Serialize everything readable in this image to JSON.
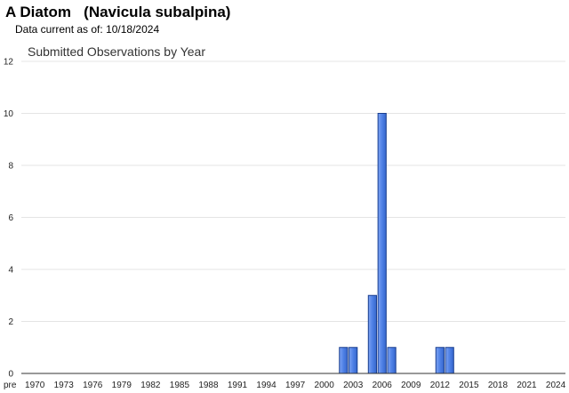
{
  "header": {
    "title": "A Diatom   (Navicula subalpina)",
    "data_current_label": "Data current as of:",
    "data_current_date": "10/18/2024"
  },
  "chart_data": {
    "type": "bar",
    "title": "Submitted Observations by Year",
    "xlabel": "",
    "ylabel": "",
    "ylim": [
      0,
      12
    ],
    "yticks": [
      0,
      2,
      4,
      6,
      8,
      10,
      12
    ],
    "grid": true,
    "categories": [
      "pre",
      "1970",
      "1971",
      "1972",
      "1973",
      "1974",
      "1975",
      "1976",
      "1977",
      "1978",
      "1979",
      "1980",
      "1981",
      "1982",
      "1983",
      "1984",
      "1985",
      "1986",
      "1987",
      "1988",
      "1989",
      "1990",
      "1991",
      "1992",
      "1993",
      "1994",
      "1995",
      "1996",
      "1997",
      "1998",
      "1999",
      "2000",
      "2001",
      "2002",
      "2003",
      "2004",
      "2005",
      "2006",
      "2007",
      "2008",
      "2009",
      "2010",
      "2011",
      "2012",
      "2013",
      "2014",
      "2015",
      "2016",
      "2017",
      "2018",
      "2019",
      "2020",
      "2021",
      "2022",
      "2023",
      "2024"
    ],
    "values": [
      0,
      0,
      0,
      0,
      0,
      0,
      0,
      0,
      0,
      0,
      0,
      0,
      0,
      0,
      0,
      0,
      0,
      0,
      0,
      0,
      0,
      0,
      0,
      0,
      0,
      0,
      0,
      0,
      0,
      0,
      0,
      0,
      0,
      1,
      1,
      0,
      3,
      10,
      1,
      0,
      0,
      0,
      0,
      1,
      1,
      0,
      0,
      0,
      0,
      0,
      0,
      0,
      0,
      0,
      0,
      0
    ],
    "xtick_labels": [
      "pre",
      "1970",
      "1973",
      "1976",
      "1979",
      "1982",
      "1985",
      "1988",
      "1991",
      "1994",
      "1997",
      "2000",
      "2003",
      "2006",
      "2009",
      "2012",
      "2015",
      "2018",
      "2021",
      "2024"
    ],
    "bar_color": "#4f81e6",
    "bar_edge_color": "#1a3f8f"
  }
}
